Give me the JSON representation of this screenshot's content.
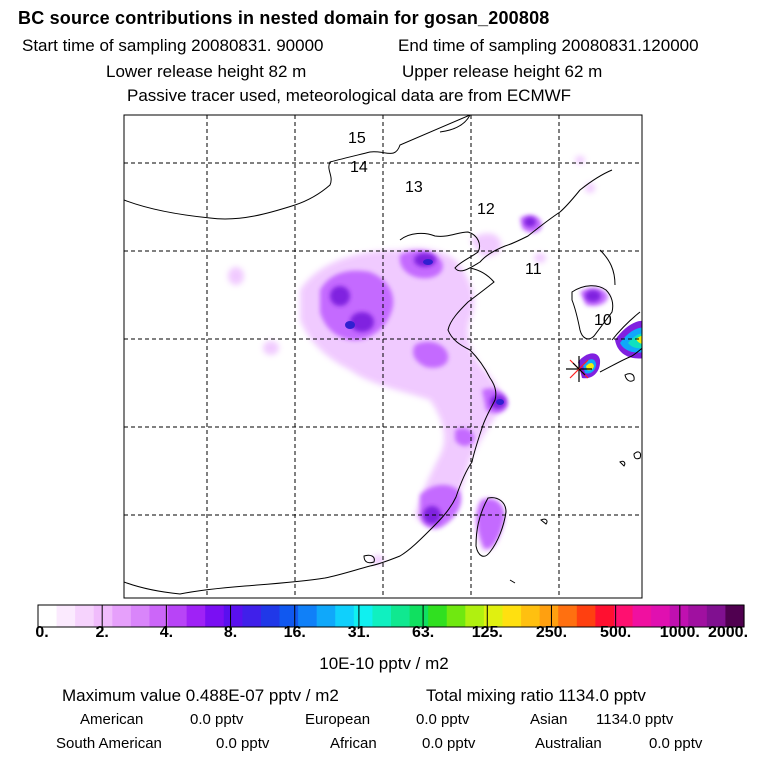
{
  "header": {
    "title": "BC  source contributions in nested domain for gosan_200808",
    "start_label": "Start time of sampling 20080831. 90000",
    "end_label": "End time of sampling 20080831.120000",
    "lower_release": "Lower release height   82 m",
    "upper_release": "Upper release height   62 m",
    "tracer_note": "Passive tracer used, meteorological data are from ECMWF"
  },
  "map": {
    "day_labels": [
      "15",
      "14",
      "13",
      "12",
      "11",
      "10"
    ],
    "receptor_marker": "star-marker",
    "colors": {
      "coast": "#000000",
      "grid": "#000000",
      "plume_light": "#f0c8ff",
      "plume_mid": "#c060ff",
      "plume_strong": "#8020e0",
      "plume_peak": "#3020d0"
    }
  },
  "colorbar": {
    "tick_labels": [
      "0.",
      "2.",
      "4.",
      "8.",
      "16.",
      "31.",
      "63.",
      "125.",
      "250.",
      "500.",
      "1000.",
      "2000."
    ],
    "unit_label": "10E-10 pptv / m2",
    "colors": [
      "#ffffff",
      "#fbeafe",
      "#f6d3fd",
      "#f0bcfc",
      "#e6a0fb",
      "#d985fa",
      "#cc66f9",
      "#b844f7",
      "#9f22f6",
      "#7a0ff3",
      "#5a10ef",
      "#4020ea",
      "#2038e8",
      "#1058f0",
      "#1080f8",
      "#10a8fa",
      "#10d0fc",
      "#10f0f0",
      "#10f0c0",
      "#10e890",
      "#10e060",
      "#30e020",
      "#70e810",
      "#b0f010",
      "#e0f010",
      "#ffe010",
      "#ffc010",
      "#ffa010",
      "#ff7010",
      "#ff4010",
      "#ff1030",
      "#ff1070",
      "#f010a0",
      "#e010b0",
      "#c010b0",
      "#a010a0",
      "#801090",
      "#500050"
    ]
  },
  "footer": {
    "max_value": "Maximum value  0.488E-07 pptv / m2",
    "total_mixing": "Total mixing ratio     1134.0 pptv",
    "american_label": "American",
    "american_value": "0.0 pptv",
    "european_label": "European",
    "european_value": "0.0 pptv",
    "asian_label": "Asian",
    "asian_value": "1134.0 pptv",
    "south_american_label": "South American",
    "south_american_value": "0.0 pptv",
    "african_label": "African",
    "african_value": "0.0 pptv",
    "australian_label": "Australian",
    "australian_value": "0.0 pptv"
  }
}
